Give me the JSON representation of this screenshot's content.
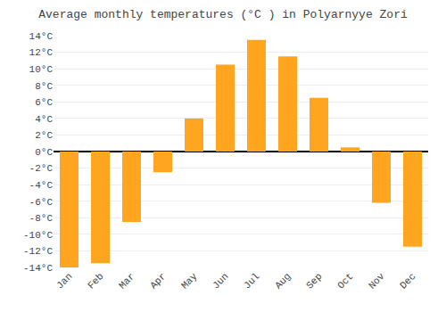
{
  "chart_data": {
    "type": "bar",
    "title": "Average monthly temperatures (°C ) in Polyarnyye Zori",
    "categories": [
      "Jan",
      "Feb",
      "Mar",
      "Apr",
      "May",
      "Jun",
      "Jul",
      "Aug",
      "Sep",
      "Oct",
      "Nov",
      "Dec"
    ],
    "values": [
      -14,
      -13.5,
      -8.5,
      -2.5,
      4,
      10.5,
      13.5,
      11.5,
      6.5,
      0.5,
      -6.2,
      -11.5
    ],
    "color": "#FFA520",
    "ylim": [
      -14,
      14
    ],
    "yticks": [
      {
        "value": -14,
        "label": "-14°C"
      },
      {
        "value": -12,
        "label": "-12°C"
      },
      {
        "value": -10,
        "label": "-10°C"
      },
      {
        "value": -8,
        "label": "-8°C"
      },
      {
        "value": -6,
        "label": "-6°C"
      },
      {
        "value": -4,
        "label": "-4°C"
      },
      {
        "value": -2,
        "label": "-2°C"
      },
      {
        "value": 0,
        "label": "0°C"
      },
      {
        "value": 2,
        "label": "2°C"
      },
      {
        "value": 4,
        "label": "4°C"
      },
      {
        "value": 6,
        "label": "6°C"
      },
      {
        "value": 8,
        "label": "8°C"
      },
      {
        "value": 10,
        "label": "10°C"
      },
      {
        "value": 12,
        "label": "12°C"
      },
      {
        "value": 14,
        "label": "14°C"
      }
    ],
    "grid": true
  }
}
